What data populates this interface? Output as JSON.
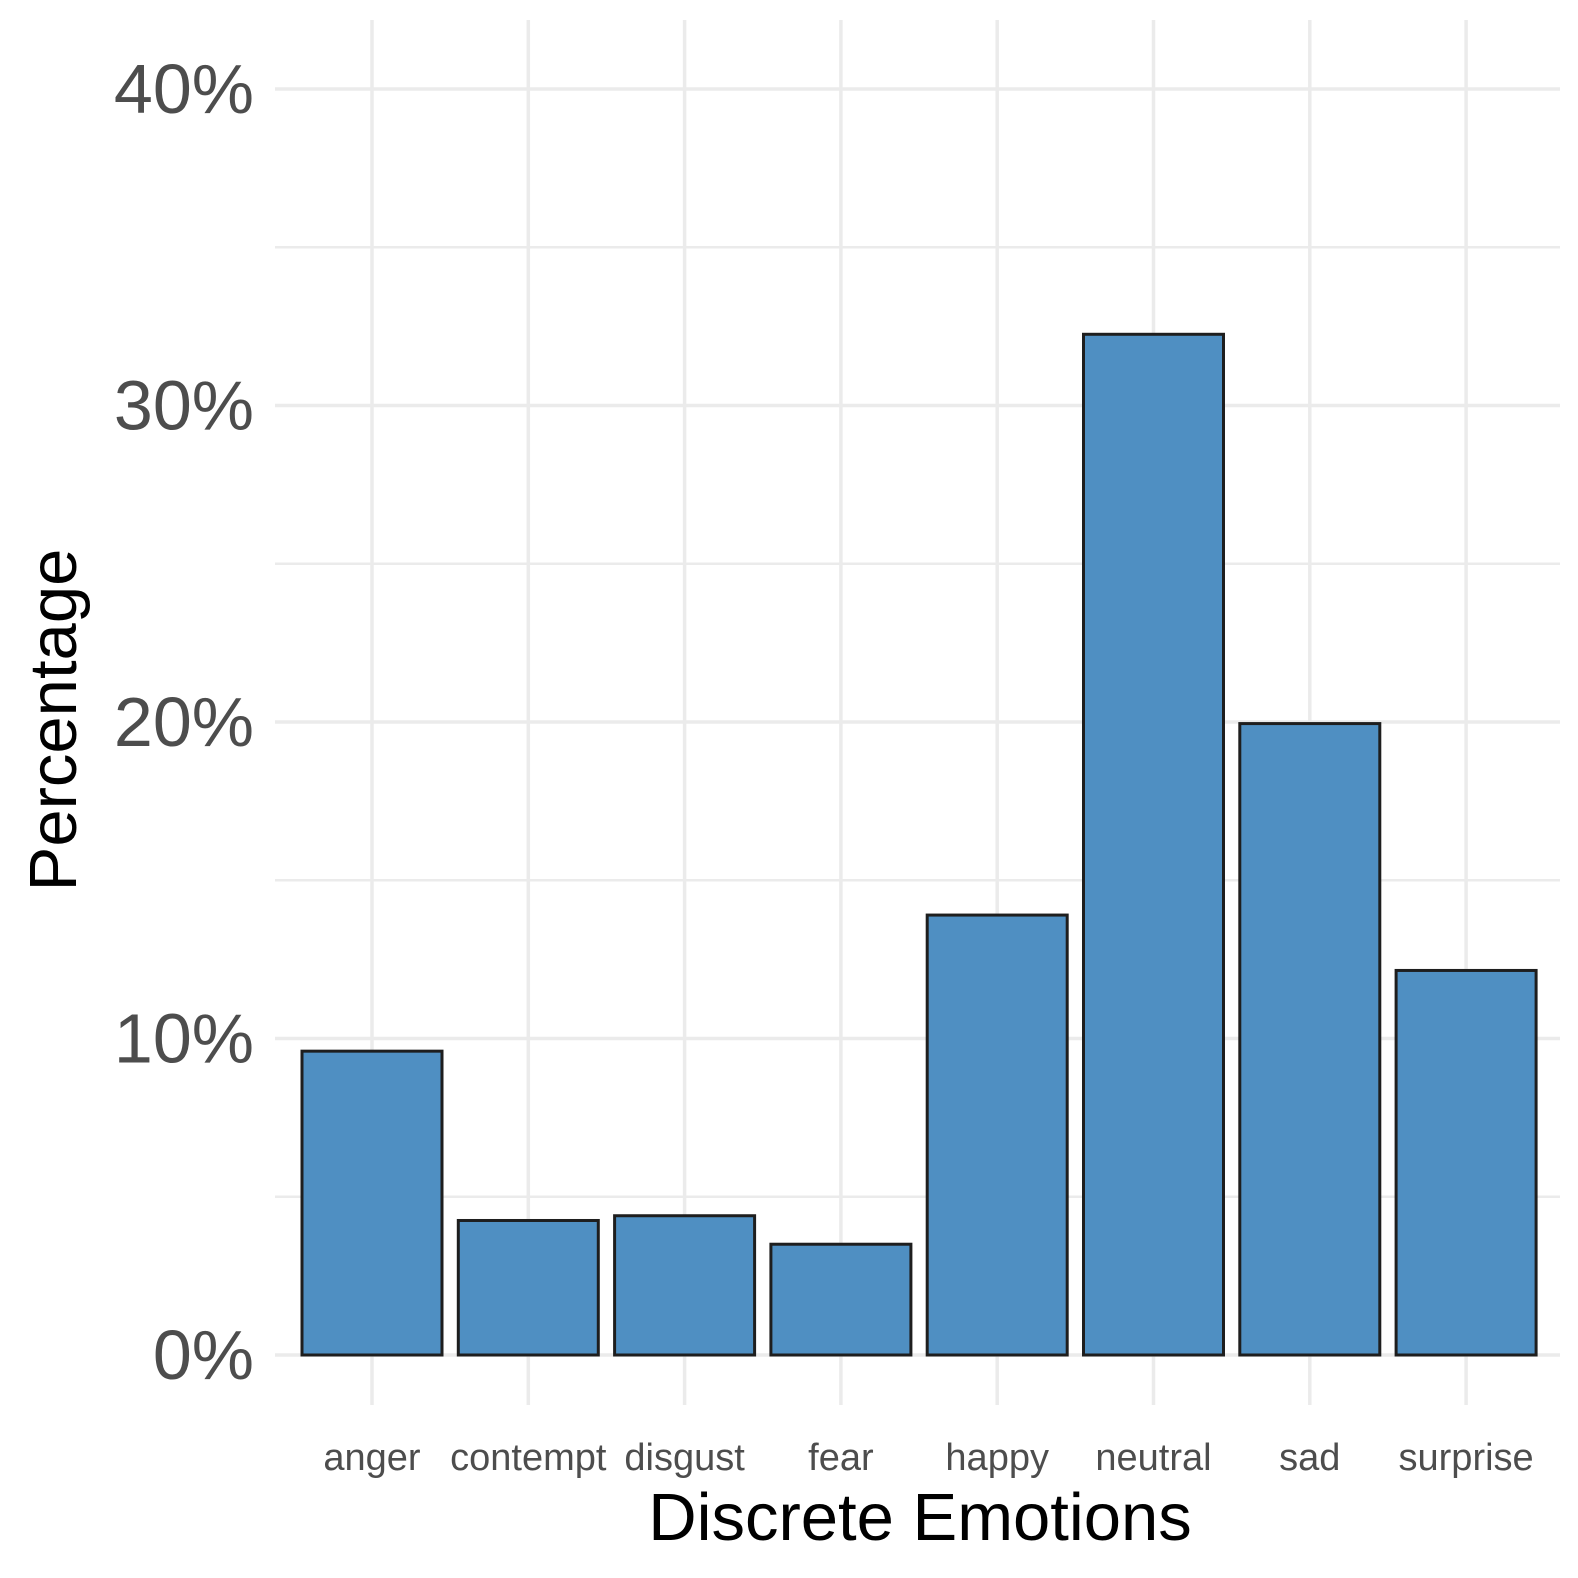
{
  "chart_data": {
    "type": "bar",
    "title": "",
    "xlabel": "Discrete Emotions",
    "ylabel": "Percentage",
    "categories": [
      "anger",
      "contempt",
      "disgust",
      "fear",
      "happy",
      "neutral",
      "sad",
      "surprise"
    ],
    "values": [
      9.6,
      4.25,
      4.4,
      3.5,
      13.9,
      32.25,
      19.95,
      12.15
    ],
    "ylim": [
      0,
      40
    ],
    "yticks": [
      0,
      10,
      20,
      30,
      40
    ],
    "ytick_labels": [
      "0%",
      "10%",
      "20%",
      "30%",
      "40%"
    ],
    "grid": true,
    "legend": "none",
    "colors": {
      "bar_fill": "#4f8fc2",
      "bar_outline": "#1e1e1e",
      "grid": "#ebebeb",
      "tick_text": "#4d4d4d",
      "title_text": "#000000"
    }
  }
}
